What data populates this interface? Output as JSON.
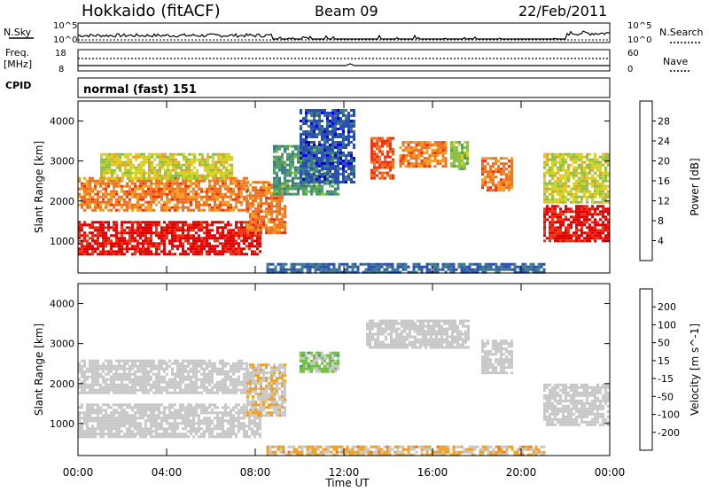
{
  "header": {
    "station": "Hokkaido (fitACF)",
    "beam": "Beam 09",
    "date": "22/Feb/2011"
  },
  "noise_panel": {
    "left_label": "N.Sky",
    "left_ticks": [
      "10^5",
      "10^0"
    ],
    "right_ticks": [
      "10^5",
      "10^0"
    ],
    "right_label": "N.Search"
  },
  "freq_panel": {
    "left_label_1": "Freq.",
    "left_label_2": "[MHz]",
    "left_ticks": [
      "18",
      "8"
    ],
    "right_ticks": [
      "60",
      "0"
    ],
    "right_label": "Nave"
  },
  "cpid_panel": {
    "label": "CPID",
    "text": "normal (fast) 151"
  },
  "x_axis": {
    "label": "Time UT",
    "ticks": [
      "00:00",
      "04:00",
      "08:00",
      "12:00",
      "16:00",
      "20:00",
      "00:00"
    ]
  },
  "chart_data": [
    {
      "type": "heatmap",
      "title": "",
      "xlabel": "Time UT",
      "ylabel": "Slant Range [km]",
      "xlim": [
        0,
        24
      ],
      "ylim": [
        200,
        4500
      ],
      "y_ticks": [
        "1000",
        "2000",
        "3000",
        "4000"
      ],
      "colorbar": {
        "label": "Power [dB]",
        "ticks": [
          "4",
          "8",
          "12",
          "16",
          "20",
          "24",
          "28"
        ],
        "range": [
          0,
          30
        ],
        "colors": [
          "#0000e0",
          "#2a4fb0",
          "#3a7a8a",
          "#4fa060",
          "#8cc040",
          "#d8d020",
          "#f0a020",
          "#f07020",
          "#f03010",
          "#e00000"
        ]
      },
      "regions": [
        {
          "name": "near-range echo band",
          "t0": 0,
          "t1": 8.2,
          "r0": 700,
          "r1": 1500,
          "level": 28
        },
        {
          "name": "morning E region",
          "t0": 0,
          "t1": 7.6,
          "r0": 1800,
          "r1": 2600,
          "level": 22
        },
        {
          "name": "morning upper scatter",
          "t0": 1.0,
          "t1": 7.0,
          "r0": 2600,
          "r1": 3200,
          "level": 16
        },
        {
          "name": "rising band",
          "t0": 7.6,
          "t1": 9.4,
          "r0": 1200,
          "r1": 2500,
          "level": 22
        },
        {
          "name": "late morning patches",
          "t0": 8.8,
          "t1": 11.8,
          "r0": 2200,
          "r1": 3400,
          "level": 10
        },
        {
          "name": "noon blue scatter",
          "t0": 10.0,
          "t1": 12.5,
          "r0": 2500,
          "r1": 4300,
          "level": 5
        },
        {
          "name": "afternoon patch 1",
          "t0": 13.2,
          "t1": 14.2,
          "r0": 2600,
          "r1": 3600,
          "level": 24
        },
        {
          "name": "afternoon patch 2",
          "t0": 14.5,
          "t1": 16.6,
          "r0": 2900,
          "r1": 3500,
          "level": 22
        },
        {
          "name": "afternoon patch 3",
          "t0": 16.8,
          "t1": 17.6,
          "r0": 2800,
          "r1": 3500,
          "level": 14
        },
        {
          "name": "evening patch",
          "t0": 18.2,
          "t1": 19.6,
          "r0": 2300,
          "r1": 3100,
          "level": 22
        },
        {
          "name": "late evening band",
          "t0": 21.0,
          "t1": 24.0,
          "r0": 1000,
          "r1": 1900,
          "level": 28
        },
        {
          "name": "late evening upper",
          "t0": 21.0,
          "t1": 24.0,
          "r0": 2000,
          "r1": 3200,
          "level": 16
        },
        {
          "name": "ground scatter floor",
          "t0": 8.5,
          "t1": 21.0,
          "r0": 250,
          "r1": 450,
          "level": 6
        }
      ]
    },
    {
      "type": "heatmap",
      "title": "",
      "xlabel": "Time UT",
      "ylabel": "Slant Range [km]",
      "xlim": [
        0,
        24
      ],
      "ylim": [
        200,
        4500
      ],
      "y_ticks": [
        "1000",
        "2000",
        "3000",
        "4000"
      ],
      "colorbar": {
        "label": "Velocity [m s^-1]",
        "ticks": [
          "200",
          "100",
          "50",
          "15",
          "-15",
          "-50",
          "-100",
          "-200"
        ],
        "range": [
          -250,
          250
        ],
        "colors": [
          "#e00000",
          "#f03010",
          "#f07020",
          "#f0a020",
          "#c8c8c8",
          "#c8c8c8",
          "#70c040",
          "#40a060",
          "#3060a0",
          "#0000e0"
        ]
      },
      "regions": [
        {
          "name": "near-range echo band",
          "t0": 0,
          "t1": 8.2,
          "r0": 700,
          "r1": 1500,
          "level": 0
        },
        {
          "name": "morning E region",
          "t0": 0,
          "t1": 7.6,
          "r0": 1800,
          "r1": 2600,
          "level": 0
        },
        {
          "name": "rising band",
          "t0": 7.6,
          "t1": 9.4,
          "r0": 1200,
          "r1": 2500,
          "level": -40
        },
        {
          "name": "green patch",
          "t0": 10.0,
          "t1": 11.8,
          "r0": 2300,
          "r1": 2800,
          "level": 60
        },
        {
          "name": "afternoon grey",
          "t0": 13.0,
          "t1": 17.6,
          "r0": 2900,
          "r1": 3600,
          "level": 0
        },
        {
          "name": "evening grey",
          "t0": 18.2,
          "t1": 19.6,
          "r0": 2300,
          "r1": 3100,
          "level": 0
        },
        {
          "name": "late evening band",
          "t0": 21.0,
          "t1": 24.0,
          "r0": 1000,
          "r1": 2000,
          "level": 0
        },
        {
          "name": "ground scatter floor",
          "t0": 8.5,
          "t1": 21.0,
          "r0": 250,
          "r1": 450,
          "level": -60
        }
      ]
    }
  ]
}
